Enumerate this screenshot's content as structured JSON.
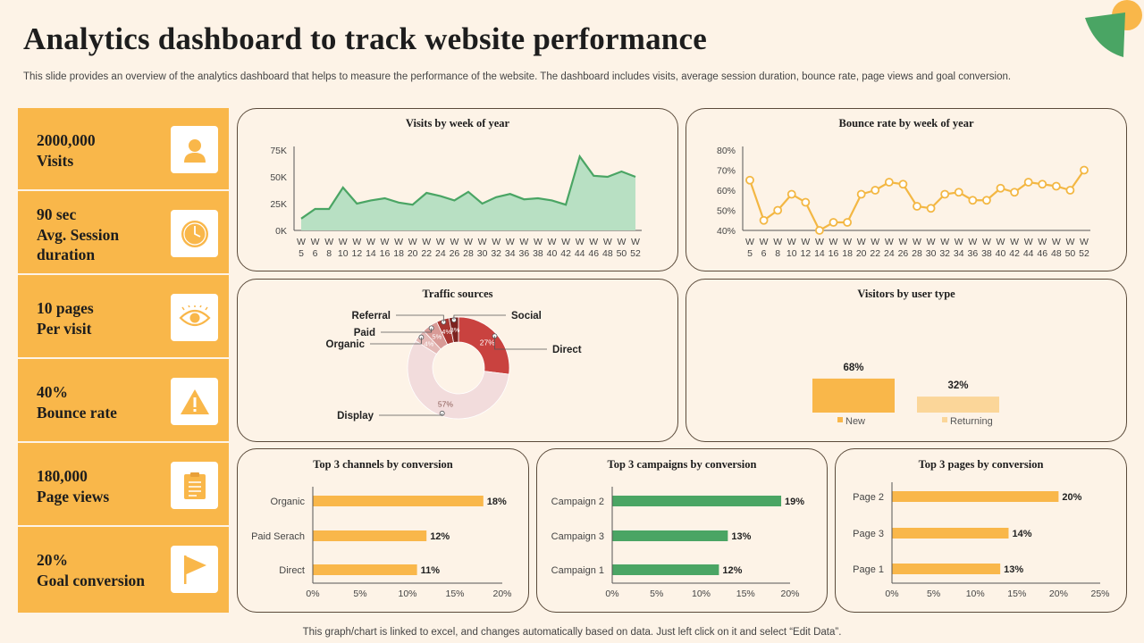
{
  "title": "Analytics dashboard to track website performance",
  "subtitle": "This slide provides an overview of the analytics dashboard that helps to measure the performance of the website. The dashboard includes visits, average session duration, bounce rate, page views and goal conversion.",
  "footer": "This graph/chart is linked to excel,  and changes automatically based on data. Just left click on it and select “Edit Data”.",
  "colors": {
    "accent": "#f9b74a",
    "green": "#4aa564",
    "red": "#c9423f",
    "background": "#fdf3e7"
  },
  "kpis": [
    {
      "line1": "2000,000",
      "line2": "Visits",
      "icon": "user-icon"
    },
    {
      "line1": "90 sec",
      "line2": "Avg. Session",
      "line3": "duration",
      "icon": "clock-icon"
    },
    {
      "line1": "10 pages",
      "line2": "Per visit",
      "icon": "eye-icon"
    },
    {
      "line1": "40%",
      "line2": "Bounce rate",
      "icon": "warning-icon"
    },
    {
      "line1": "180,000",
      "line2": "Page views",
      "icon": "clipboard-icon"
    },
    {
      "line1": "20%",
      "line2": "Goal conversion",
      "icon": "flag-icon"
    }
  ],
  "chart_data": [
    {
      "id": "visits",
      "type": "area",
      "title": "Visits by week of year",
      "x": [
        "W 5",
        "W 6",
        "W 8",
        "W 10",
        "W 12",
        "W 14",
        "W 16",
        "W 18",
        "W 20",
        "W 22",
        "W 24",
        "W 26",
        "W 28",
        "W 30",
        "W 32",
        "W 34",
        "W 36",
        "W 38",
        "W 40",
        "W 42",
        "W 44",
        "W 46",
        "W 48",
        "W 50",
        "W 52"
      ],
      "values": [
        11,
        20,
        20,
        40,
        25,
        28,
        30,
        26,
        24,
        35,
        32,
        28,
        36,
        25,
        31,
        34,
        29,
        30,
        28,
        24,
        69,
        51,
        50,
        55,
        50
      ],
      "ylim": [
        0,
        75
      ],
      "yticks": [
        "0K",
        "25K",
        "50K",
        "75K"
      ],
      "color": "#4aa564"
    },
    {
      "id": "bounce",
      "type": "line",
      "title": "Bounce rate by week of year",
      "x": [
        "W 5",
        "W 6",
        "W 8",
        "W 10",
        "W 12",
        "W 14",
        "W 16",
        "W 18",
        "W 20",
        "W 22",
        "W 24",
        "W 26",
        "W 28",
        "W 30",
        "W 32",
        "W 34",
        "W 36",
        "W 38",
        "W 40",
        "W 42",
        "W 44",
        "W 46",
        "W 48",
        "W 50",
        "W 52"
      ],
      "values": [
        65,
        45,
        50,
        58,
        54,
        40,
        44,
        44,
        58,
        60,
        64,
        63,
        52,
        51,
        58,
        59,
        55,
        55,
        61,
        59,
        64,
        63,
        62,
        60,
        70
      ],
      "ylim": [
        40,
        80
      ],
      "yticks": [
        "40%",
        "50%",
        "60%",
        "70%",
        "80%"
      ],
      "color": "#f3b743"
    },
    {
      "id": "traffic",
      "type": "pie",
      "title": "Traffic sources",
      "slices": [
        {
          "name": "Direct",
          "value": 27,
          "label": "27%",
          "color": "#c9423f"
        },
        {
          "name": "Display",
          "value": 57,
          "label": "57%",
          "color": "#f2dcdc"
        },
        {
          "name": "Organic",
          "value": 4,
          "label": "4%",
          "color": "#e4b9b6"
        },
        {
          "name": "Paid",
          "value": 5,
          "label": "5%",
          "color": "#d89a96"
        },
        {
          "name": "Referral",
          "value": 4,
          "label": "4%",
          "color": "#a83631"
        },
        {
          "name": "Social",
          "value": 3,
          "label": "3%",
          "color": "#7d2320"
        }
      ]
    },
    {
      "id": "usertype",
      "type": "bar",
      "title": "Visitors by user type",
      "categories": [
        "New",
        "Returning"
      ],
      "values": [
        68,
        32
      ],
      "labels": [
        "68%",
        "32%"
      ],
      "colors": [
        "#f9b74a",
        "#fbd699"
      ]
    },
    {
      "id": "channels",
      "type": "bar",
      "title": "Top 3 channels by conversion",
      "categories": [
        "Organic",
        "Paid Serach",
        "Direct"
      ],
      "values": [
        18,
        12,
        11
      ],
      "labels": [
        "18%",
        "12%",
        "11%"
      ],
      "xlim": [
        0,
        20
      ],
      "xticks": [
        "0%",
        "5%",
        "10%",
        "15%",
        "20%"
      ],
      "color": "#f9b74a"
    },
    {
      "id": "campaigns",
      "type": "bar",
      "title": "Top 3 campaigns by conversion",
      "categories": [
        "Campaign 2",
        "Campaign 3",
        "Campaign 1"
      ],
      "values": [
        19,
        13,
        12
      ],
      "labels": [
        "19%",
        "13%",
        "12%"
      ],
      "xlim": [
        0,
        20
      ],
      "xticks": [
        "0%",
        "5%",
        "10%",
        "15%",
        "20%"
      ],
      "color": "#4aa564"
    },
    {
      "id": "pages",
      "type": "bar",
      "title": "Top 3 pages by conversion",
      "categories": [
        "Page 2",
        "Page 3",
        "Page 1"
      ],
      "values": [
        20,
        14,
        13
      ],
      "labels": [
        "20%",
        "14%",
        "13%"
      ],
      "xlim": [
        0,
        25
      ],
      "xticks": [
        "0%",
        "5%",
        "10%",
        "15%",
        "20%",
        "25%"
      ],
      "color": "#f9b74a"
    }
  ]
}
